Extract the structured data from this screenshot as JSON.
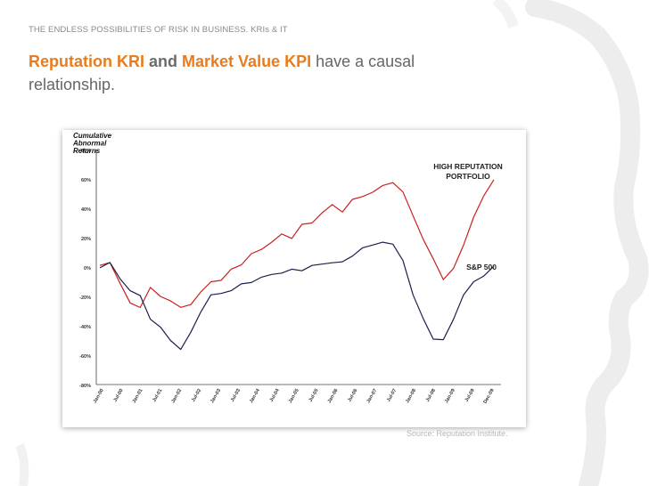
{
  "slide": {
    "header": "THE ENDLESS POSSIBILITIES OF RISK IN BUSINESS. KRIs & IT",
    "title_part1": "Reputation KRI",
    "title_part2": " and ",
    "title_part3": "Market Value KPI",
    "title_part4": " have a causal relationship.",
    "source": "Source: Reputation Institute.",
    "colors": {
      "accent": "#e87c1e",
      "red_series": "#cc1f1f",
      "navy_series": "#1a1f4e"
    }
  },
  "chart_data": {
    "type": "line",
    "ylabel": "Cumulative Abnormal Returns",
    "ylim": [
      -80,
      80
    ],
    "yticks": [
      -80,
      -60,
      -40,
      -20,
      0,
      20,
      40,
      60,
      80
    ],
    "ytick_labels": [
      "-80%",
      "-60%",
      "-40%",
      "-20%",
      "0%",
      "20%",
      "40%",
      "60%",
      "80%"
    ],
    "x_labels": [
      "Jan-00",
      "Jul-00",
      "Jan-01",
      "Jul-01",
      "Jan-02",
      "Jul-02",
      "Jan-03",
      "Jul-03",
      "Jan-04",
      "Jul-04",
      "Jan-05",
      "Jul-05",
      "Jan-06",
      "Jul-06",
      "Jan-07",
      "Jul-07",
      "Jan-08",
      "Jul-08",
      "Jan-09",
      "Jul-09",
      "Dec-09"
    ],
    "grid": false,
    "series": [
      {
        "name": "HIGH REPUTATION PORTFOLIO",
        "values": [
          0,
          3,
          -10,
          -25,
          -27,
          -15,
          -20,
          -22,
          -28,
          -25,
          -18,
          -10,
          -8,
          -2,
          2,
          8,
          12,
          18,
          22,
          20,
          28,
          30,
          38,
          42,
          38,
          45,
          48,
          52,
          55,
          58,
          50,
          35,
          20,
          5,
          -8,
          -2,
          15,
          35,
          48,
          60
        ]
      },
      {
        "name": "S&P 500",
        "values": [
          0,
          2,
          -8,
          -15,
          -20,
          -35,
          -42,
          -50,
          -55,
          -45,
          -30,
          -20,
          -18,
          -15,
          -12,
          -10,
          -8,
          -5,
          -3,
          -2,
          -2,
          0,
          2,
          4,
          3,
          8,
          12,
          15,
          18,
          15,
          5,
          -20,
          -35,
          -48,
          -50,
          -35,
          -20,
          -10,
          -5,
          0
        ]
      }
    ],
    "annotations": [
      "HIGH REPUTATION PORTFOLIO",
      "S&P 500"
    ]
  }
}
